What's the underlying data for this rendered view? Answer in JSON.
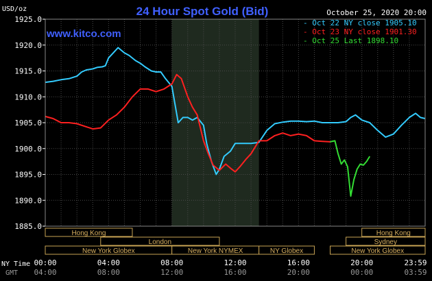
{
  "chart_data": {
    "type": "line",
    "title": "24 Hour Spot Gold (Bid)",
    "watermark": "www.kitco.com",
    "timestamp": "October 25, 2020 20:00",
    "ylabel": "USD/oz",
    "ylim": [
      1885.0,
      1925.0
    ],
    "y_ticks": [
      "1925.0",
      "1920.0",
      "1915.0",
      "1910.0",
      "1905.0",
      "1900.0",
      "1895.0",
      "1890.0",
      "1885.0"
    ],
    "x_range_hours": [
      0,
      24
    ],
    "x_ticks_ny": [
      "00:00",
      "04:00",
      "08:00",
      "12:00",
      "16:00",
      "20:00",
      "23:59"
    ],
    "x_ticks_gmt": [
      "04:00",
      "08:00",
      "12:00",
      "16:00",
      "20:00",
      "00:00",
      "03:59"
    ],
    "x_axis_label_ny": "NY Time",
    "x_axis_label_gmt": "GMT",
    "grid": true,
    "legend_position": "top-right",
    "shaded_region_hours": [
      8.0,
      13.5
    ],
    "series": [
      {
        "name": "Oct 22 NY close 1905.10",
        "color": "#33ccff",
        "points": [
          [
            0,
            1912.8
          ],
          [
            0.5,
            1913.0
          ],
          [
            1.0,
            1913.3
          ],
          [
            1.5,
            1913.5
          ],
          [
            2.0,
            1914.0
          ],
          [
            2.3,
            1914.8
          ],
          [
            2.6,
            1915.2
          ],
          [
            3.0,
            1915.4
          ],
          [
            3.3,
            1915.7
          ],
          [
            3.6,
            1915.8
          ],
          [
            3.8,
            1916.0
          ],
          [
            4.0,
            1917.5
          ],
          [
            4.3,
            1918.5
          ],
          [
            4.6,
            1919.5
          ],
          [
            5.0,
            1918.5
          ],
          [
            5.3,
            1918.0
          ],
          [
            5.7,
            1917.0
          ],
          [
            6.0,
            1916.5
          ],
          [
            6.3,
            1915.8
          ],
          [
            6.7,
            1915.0
          ],
          [
            7.0,
            1914.8
          ],
          [
            7.3,
            1914.8
          ],
          [
            7.6,
            1913.5
          ],
          [
            8.0,
            1912.0
          ],
          [
            8.2,
            1908.5
          ],
          [
            8.4,
            1905.0
          ],
          [
            8.7,
            1906.0
          ],
          [
            9.0,
            1906.0
          ],
          [
            9.3,
            1905.5
          ],
          [
            9.6,
            1906.0
          ],
          [
            10.0,
            1904.5
          ],
          [
            10.2,
            1901.0
          ],
          [
            10.5,
            1897.5
          ],
          [
            10.8,
            1895.0
          ],
          [
            11.0,
            1896.0
          ],
          [
            11.3,
            1898.5
          ],
          [
            11.7,
            1899.5
          ],
          [
            12.0,
            1901.0
          ],
          [
            12.5,
            1901.0
          ],
          [
            13.0,
            1901.0
          ],
          [
            13.5,
            1901.2
          ],
          [
            14.0,
            1903.5
          ],
          [
            14.5,
            1904.8
          ],
          [
            15.0,
            1905.1
          ],
          [
            15.5,
            1905.3
          ],
          [
            16.0,
            1905.3
          ],
          [
            16.5,
            1905.2
          ],
          [
            17.0,
            1905.3
          ],
          [
            17.5,
            1905.0
          ],
          [
            18.0,
            1905.0
          ],
          [
            18.5,
            1905.0
          ],
          [
            19.0,
            1905.2
          ],
          [
            19.3,
            1906.0
          ],
          [
            19.6,
            1906.5
          ],
          [
            20.0,
            1905.5
          ],
          [
            20.5,
            1905.0
          ],
          [
            21.0,
            1903.5
          ],
          [
            21.5,
            1902.2
          ],
          [
            22.0,
            1902.8
          ],
          [
            22.5,
            1904.5
          ],
          [
            23.0,
            1906.0
          ],
          [
            23.4,
            1906.8
          ],
          [
            23.7,
            1906.0
          ],
          [
            24.0,
            1905.8
          ]
        ]
      },
      {
        "name": "Oct 23 NY close 1901.30",
        "color": "#ff2020",
        "points": [
          [
            0,
            1906.2
          ],
          [
            0.5,
            1905.8
          ],
          [
            1.0,
            1905.0
          ],
          [
            1.5,
            1905.0
          ],
          [
            2.0,
            1904.8
          ],
          [
            2.5,
            1904.3
          ],
          [
            3.0,
            1903.8
          ],
          [
            3.5,
            1904.0
          ],
          [
            4.0,
            1905.5
          ],
          [
            4.5,
            1906.5
          ],
          [
            5.0,
            1908.0
          ],
          [
            5.5,
            1910.0
          ],
          [
            6.0,
            1911.5
          ],
          [
            6.5,
            1911.5
          ],
          [
            7.0,
            1911.0
          ],
          [
            7.5,
            1911.5
          ],
          [
            8.0,
            1912.5
          ],
          [
            8.3,
            1914.3
          ],
          [
            8.6,
            1913.5
          ],
          [
            9.0,
            1910.0
          ],
          [
            9.3,
            1908.0
          ],
          [
            9.6,
            1906.5
          ],
          [
            10.0,
            1901.5
          ],
          [
            10.3,
            1899.0
          ],
          [
            10.6,
            1896.8
          ],
          [
            11.0,
            1895.8
          ],
          [
            11.4,
            1897.0
          ],
          [
            11.7,
            1896.2
          ],
          [
            12.0,
            1895.5
          ],
          [
            12.3,
            1896.5
          ],
          [
            12.7,
            1898.0
          ],
          [
            13.0,
            1899.0
          ],
          [
            13.5,
            1901.5
          ],
          [
            14.0,
            1901.5
          ],
          [
            14.5,
            1902.5
          ],
          [
            15.0,
            1903.0
          ],
          [
            15.5,
            1902.5
          ],
          [
            16.0,
            1902.8
          ],
          [
            16.5,
            1902.5
          ],
          [
            17.0,
            1901.5
          ],
          [
            17.5,
            1901.4
          ],
          [
            18.0,
            1901.3
          ]
        ]
      },
      {
        "name": "Oct 25 Last 1898.10",
        "color": "#33dd33",
        "points": [
          [
            18.0,
            1901.3
          ],
          [
            18.3,
            1901.5
          ],
          [
            18.5,
            1899.0
          ],
          [
            18.7,
            1897.0
          ],
          [
            18.9,
            1897.8
          ],
          [
            19.1,
            1896.5
          ],
          [
            19.3,
            1890.8
          ],
          [
            19.5,
            1894.0
          ],
          [
            19.7,
            1896.0
          ],
          [
            19.9,
            1897.0
          ],
          [
            20.1,
            1896.8
          ],
          [
            20.3,
            1897.5
          ],
          [
            20.5,
            1898.5
          ]
        ]
      }
    ],
    "sessions": [
      {
        "label": "Hong Kong",
        "row": 0,
        "start": 0.0,
        "end": 5.5
      },
      {
        "label": "London",
        "row": 1,
        "start": 3.5,
        "end": 11.0
      },
      {
        "label": "New York Globex",
        "row": 2,
        "start": 0.0,
        "end": 8.0
      },
      {
        "label": "New York NYMEX",
        "row": 2,
        "start": 8.0,
        "end": 13.5
      },
      {
        "label": "NY Globex",
        "row": 2,
        "start": 13.5,
        "end": 17.0
      },
      {
        "label": "Hong Kong",
        "row": 0,
        "start": 20.0,
        "end": 24.0
      },
      {
        "label": "Sydney",
        "row": 1,
        "start": 19.0,
        "end": 24.0
      },
      {
        "label": "New York Globex",
        "row": 2,
        "start": 18.0,
        "end": 24.0
      }
    ]
  }
}
